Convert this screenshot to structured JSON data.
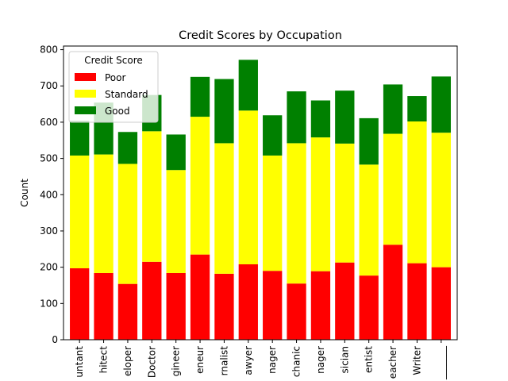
{
  "chart_data": {
    "type": "bar",
    "stacked": true,
    "title": "Credit Scores by Occupation",
    "xlabel": "",
    "ylabel": "Count",
    "ylim": [
      0,
      810
    ],
    "yticks": [
      0,
      100,
      200,
      300,
      400,
      500,
      600,
      700,
      800
    ],
    "categories": [
      "Accountant",
      "Architect",
      "Developer",
      "Doctor",
      "Engineer",
      "Entrepreneur",
      "Journalist",
      "Lawyer",
      "Manager",
      "Mechanic",
      "Media_Manager",
      "Musician",
      "Scientist",
      "Teacher",
      "Writer",
      "_______"
    ],
    "tick_labels_visible": [
      "untant",
      "hitect",
      "eloper",
      "Doctor",
      "gineer",
      "eneur",
      "rnalist",
      "awyer",
      "nager",
      "chanic",
      "nager",
      "sician",
      "entist",
      "eacher",
      "Writer",
      "_______"
    ],
    "series": [
      {
        "name": "Poor",
        "color": "#ff0000",
        "values": [
          197,
          184,
          154,
          215,
          184,
          235,
          182,
          208,
          190,
          155,
          189,
          213,
          177,
          262,
          211,
          200
        ]
      },
      {
        "name": "Standard",
        "color": "#ffff00",
        "values": [
          311,
          327,
          331,
          360,
          284,
          380,
          360,
          424,
          318,
          387,
          369,
          328,
          306,
          306,
          391,
          371
        ]
      },
      {
        "name": "Good",
        "color": "#008000",
        "values": [
          96,
          143,
          88,
          100,
          98,
          110,
          177,
          140,
          111,
          143,
          102,
          146,
          128,
          136,
          70,
          155
        ]
      }
    ],
    "legend": {
      "title": "Credit Score",
      "placement": "upper-left"
    },
    "grid": false
  }
}
